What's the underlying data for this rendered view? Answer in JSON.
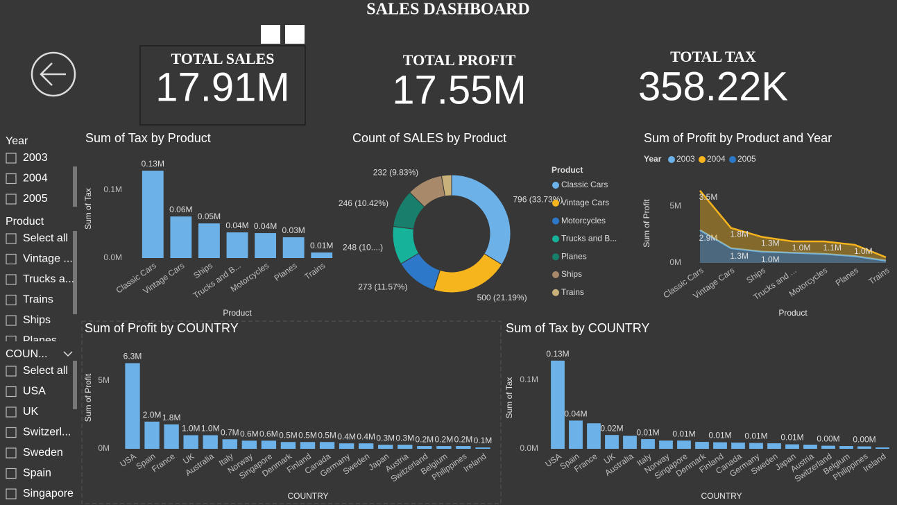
{
  "header": {
    "title": "SALES DASHBOARD"
  },
  "kpis": [
    {
      "title": "TOTAL SALES",
      "value": "17.91M"
    },
    {
      "title": "TOTAL PROFIT",
      "value": "17.55M"
    },
    {
      "title": "TOTAL TAX",
      "value": "358.22K"
    }
  ],
  "slicers": [
    {
      "title": "Year",
      "items": [
        "2003",
        "2004",
        "2005"
      ]
    },
    {
      "title": "Product",
      "items": [
        "Select all",
        "Vintage ...",
        "Trucks a...",
        "Trains",
        "Ships",
        "Planes"
      ]
    },
    {
      "title": "COUN...",
      "items": [
        "Select all",
        "USA",
        "UK",
        "Switzerl...",
        "Sweden",
        "Spain",
        "Singapore"
      ]
    }
  ],
  "chart_data": [
    {
      "type": "bar",
      "title": "Sum of Tax by Product",
      "x_label": "Product",
      "y_label": "Sum of Tax",
      "color": "#6cb2e8",
      "categories": [
        "Classic Cars",
        "Vintage Cars",
        "Ships",
        "Trucks and B...",
        "Motorcycles",
        "Planes",
        "Trains"
      ],
      "values": [
        128600,
        61200,
        51000,
        37800,
        36700,
        30600,
        8200
      ],
      "value_labels": [
        "0.13M",
        "0.06M",
        "0.05M",
        "0.04M",
        "0.04M",
        "0.03M",
        "0.01M"
      ],
      "ylim": [
        0,
        145000
      ],
      "yticks": [
        {
          "value": 0,
          "label": "0.0M"
        },
        {
          "value": 100000,
          "label": "0.1M"
        }
      ]
    },
    {
      "type": "pie",
      "title": "Count of SALES by Product",
      "legend_title": "Product",
      "categories": [
        "Classic Cars",
        "Vintage Cars",
        "Motorcycles",
        "Trucks and B...",
        "Planes",
        "Ships",
        "Trains"
      ],
      "values": [
        796,
        500,
        273,
        248,
        246,
        232,
        65
      ],
      "value_labels": [
        "796 (33.73%)",
        "500 (21.19%)",
        "273 (11.57%)",
        "248 (10....)",
        "246 (10.42%)",
        "232 (9.83%)",
        null
      ],
      "colors": [
        "#6cb2e8",
        "#f6b51c",
        "#2d78c8",
        "#16b39a",
        "#177f6b",
        "#a88a6b",
        "#c8b27a"
      ]
    },
    {
      "type": "area",
      "title": "Sum of Profit by Product and Year",
      "legend_title": "Year",
      "x_label": "Product",
      "y_label": "Sum of Profit",
      "stacked": true,
      "categories": [
        "Classic Cars",
        "Vintage Cars",
        "Ships",
        "Trucks and ...",
        "Motorcycles",
        "Planes",
        "Trains"
      ],
      "series": [
        {
          "name": "2003",
          "color": "#6cb2e8",
          "values": [
            2900000,
            1300000,
            1000000,
            900000,
            800000,
            600000,
            200000
          ],
          "value_labels": [
            "2.9M",
            "1.3M",
            "1.0M",
            null,
            null,
            null,
            null
          ]
        },
        {
          "name": "2004",
          "color": "#f6b51c",
          "values": [
            3500000,
            1800000,
            1300000,
            1000000,
            1100000,
            1000000,
            300000
          ],
          "value_labels": [
            "3.5M",
            "1.8M",
            "1.3M",
            "1.0M",
            "1.1M",
            "1.0M",
            null
          ]
        },
        {
          "name": "2005",
          "color": "#2d78c8",
          "values": [
            null,
            null,
            null,
            null,
            null,
            null,
            null
          ]
        }
      ],
      "ylim": [
        0,
        7000000
      ],
      "yticks": [
        {
          "value": 0,
          "label": "0M"
        },
        {
          "value": 5000000,
          "label": "5M"
        }
      ]
    },
    {
      "type": "bar",
      "title": "Sum of Profit by COUNTRY",
      "x_label": "COUNTRY",
      "y_label": "Sum of Profit",
      "color": "#6cb2e8",
      "categories": [
        "USA",
        "Spain",
        "France",
        "UK",
        "Australia",
        "Italy",
        "Norway",
        "Singapore",
        "Denmark",
        "Finland",
        "Canada",
        "Germany",
        "Sweden",
        "Japan",
        "Austria",
        "Switzerland",
        "Belgium",
        "Philippines",
        "Ireland"
      ],
      "values": [
        6300000,
        2000000,
        1800000,
        1000000,
        1000000,
        700000,
        600000,
        600000,
        500000,
        500000,
        500000,
        400000,
        400000,
        300000,
        300000,
        200000,
        200000,
        200000,
        100000
      ],
      "value_labels": [
        "6.3M",
        "2.0M",
        "1.8M",
        "1.0M",
        "1.0M",
        "0.7M",
        "0.6M",
        "0.6M",
        "0.5M",
        "0.5M",
        "0.5M",
        "0.4M",
        "0.4M",
        "0.3M",
        "0.3M",
        "0.2M",
        "0.2M",
        "0.2M",
        "0.1M"
      ],
      "ylim": [
        0,
        7500000
      ],
      "yticks": [
        {
          "value": 0,
          "label": "0M"
        },
        {
          "value": 5000000,
          "label": "5M"
        }
      ]
    },
    {
      "type": "bar",
      "title": "Sum of Tax by COUNTRY",
      "x_label": "COUNTRY",
      "y_label": "Sum of Tax",
      "color": "#6cb2e8",
      "categories": [
        "USA",
        "Spain",
        "France",
        "UK",
        "Australia",
        "Italy",
        "Norway",
        "Singapore",
        "Denmark",
        "Finland",
        "Canada",
        "Germany",
        "Sweden",
        "Japan",
        "Austria",
        "Switzerland",
        "Belgium",
        "Philippines",
        "Ireland"
      ],
      "values": [
        128000,
        41000,
        37000,
        20000,
        19000,
        14000,
        12000,
        12000,
        10000,
        9500,
        9000,
        8500,
        8000,
        6500,
        6000,
        4500,
        4000,
        3500,
        2000
      ],
      "value_labels": [
        "0.13M",
        "0.04M",
        null,
        "0.02M",
        null,
        "0.01M",
        null,
        "0.01M",
        null,
        "0.01M",
        null,
        "0.01M",
        null,
        "0.01M",
        null,
        "0.00M",
        null,
        "0.00M",
        null
      ],
      "ylim": [
        0,
        148000
      ],
      "yticks": [
        {
          "value": 0,
          "label": "0.0M"
        },
        {
          "value": 100000,
          "label": "0.1M"
        }
      ]
    }
  ]
}
